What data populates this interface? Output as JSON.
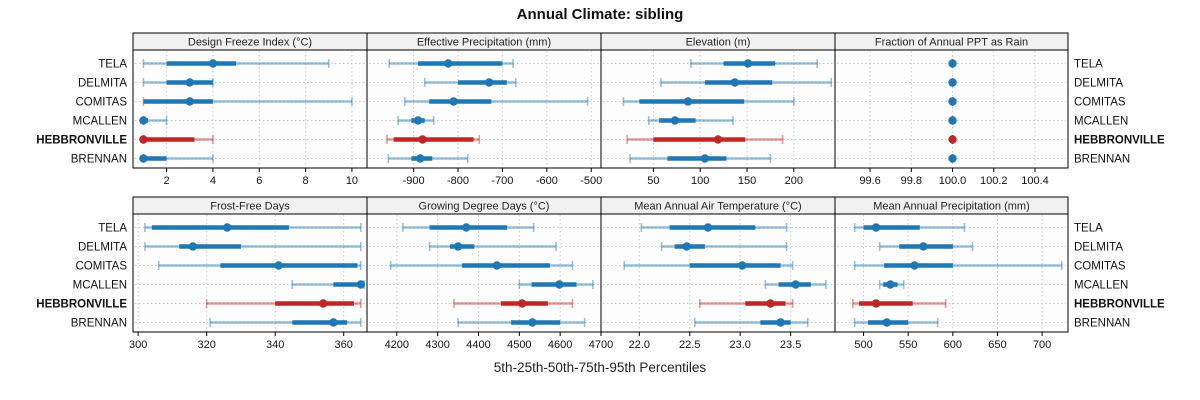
{
  "title": "Annual Climate: sibling",
  "caption": "5th-25th-50th-75th-95th Percentiles",
  "colors": {
    "blue": "#1f78b4",
    "blue_light": "rgba(31,120,180,0.45)",
    "red": "#bf2626",
    "red_light": "rgba(191,38,38,0.45)",
    "strip_bg": "#f0f0f0",
    "grid": "#c9c9c9",
    "border": "#000000",
    "panel_bg": "#fdfdfd"
  },
  "chart_data": {
    "type": "dotplot-percentiles",
    "title": "Annual Climate: sibling",
    "xlabel": "5th-25th-50th-75th-95th Percentiles",
    "grid_rows": 2,
    "grid_cols": 4,
    "legend_position": "none",
    "grid_on": true,
    "percentile_order": [
      "5th",
      "25th",
      "50th",
      "75th",
      "95th"
    ],
    "rows": [
      "TELA",
      "DELMITA",
      "COMITAS",
      "MCALLEN",
      "HEBBRONVILLE",
      "BRENNAN"
    ],
    "highlight_row": "HEBBRONVILLE",
    "panels": [
      {
        "id": "design-freeze-index",
        "label": "Design Freeze Index (°C)",
        "domain": [
          0.55,
          10.65
        ],
        "tick_values": [
          2,
          4,
          6,
          8,
          10
        ],
        "tick_labels": [
          "2",
          "4",
          "6",
          "8",
          "10"
        ],
        "values": [
          [
            1,
            2,
            4,
            5,
            9
          ],
          [
            1,
            2,
            3,
            4,
            4
          ],
          [
            1,
            1,
            3,
            4,
            10
          ],
          [
            1,
            1,
            1,
            1.2,
            2
          ],
          [
            1,
            1,
            1,
            3.2,
            4
          ],
          [
            1,
            1,
            1,
            2,
            4
          ]
        ]
      },
      {
        "id": "effective-precipitation",
        "label": "Effective Precipitation (mm)",
        "domain": [
          -1005,
          -478
        ],
        "tick_values": [
          -900,
          -800,
          -700,
          -600,
          -500
        ],
        "tick_labels": [
          "-900",
          "-800",
          "-700",
          "-600",
          "-500"
        ],
        "values": [
          [
            -955,
            -890,
            -822,
            -700,
            -676
          ],
          [
            -875,
            -800,
            -730,
            -690,
            -670
          ],
          [
            -920,
            -865,
            -810,
            -725,
            -508
          ],
          [
            -935,
            -905,
            -890,
            -875,
            -855
          ],
          [
            -960,
            -945,
            -880,
            -765,
            -752
          ],
          [
            -957,
            -905,
            -885,
            -858,
            -778
          ]
        ]
      },
      {
        "id": "elevation",
        "label": "Elevation (m)",
        "domain": [
          -6,
          244
        ],
        "tick_values": [
          50,
          100,
          150,
          200
        ],
        "tick_labels": [
          "50",
          "100",
          "150",
          "200"
        ],
        "values": [
          [
            90,
            125,
            151,
            180,
            225
          ],
          [
            58,
            105,
            137,
            177,
            240
          ],
          [
            18,
            35,
            87,
            147,
            200
          ],
          [
            45,
            56,
            73,
            95,
            135
          ],
          [
            22,
            50,
            119,
            148,
            188
          ],
          [
            25,
            65,
            105,
            128,
            175
          ]
        ]
      },
      {
        "id": "fraction-of-annual-ppt-as-rain",
        "label": "Fraction of Annual PPT as Rain",
        "domain": [
          99.43,
          100.56
        ],
        "tick_values": [
          99.6,
          99.8,
          100.0,
          100.2,
          100.4
        ],
        "tick_labels": [
          "99.6",
          "99.8",
          "100.0",
          "100.2",
          "100.4"
        ],
        "values": [
          [
            100,
            100,
            100,
            100,
            100
          ],
          [
            100,
            100,
            100,
            100,
            100
          ],
          [
            100,
            100,
            100,
            100,
            100
          ],
          [
            100,
            100,
            100,
            100,
            100
          ],
          [
            100,
            100,
            100,
            100,
            100
          ],
          [
            100,
            100,
            100,
            100,
            100
          ]
        ]
      },
      {
        "id": "frost-free-days",
        "label": "Frost-Free Days",
        "domain": [
          298.5,
          366.8
        ],
        "tick_values": [
          300,
          320,
          340,
          360
        ],
        "tick_labels": [
          "300",
          "320",
          "340",
          "360"
        ],
        "values": [
          [
            302,
            304,
            326,
            344,
            365
          ],
          [
            302,
            312,
            316,
            330,
            365
          ],
          [
            306,
            324,
            341,
            364,
            365
          ],
          [
            345,
            357,
            365,
            366,
            366
          ],
          [
            320,
            340,
            354,
            363,
            365
          ],
          [
            321,
            345,
            357,
            361,
            365
          ]
        ]
      },
      {
        "id": "growing-degree-days",
        "label": "Growing Degree Days (°C)",
        "domain": [
          4127,
          4700
        ],
        "tick_values": [
          4200,
          4300,
          4400,
          4500,
          4600,
          4700
        ],
        "tick_labels": [
          "4200",
          "4300",
          "4400",
          "4500",
          "4600",
          "4700"
        ],
        "values": [
          [
            4215,
            4280,
            4370,
            4470,
            4535
          ],
          [
            4280,
            4330,
            4350,
            4390,
            4590
          ],
          [
            4185,
            4360,
            4445,
            4575,
            4630
          ],
          [
            4500,
            4530,
            4598,
            4640,
            4680
          ],
          [
            4340,
            4455,
            4507,
            4570,
            4630
          ],
          [
            4350,
            4480,
            4532,
            4600,
            4660
          ]
        ]
      },
      {
        "id": "mean-annual-air-temperature",
        "label": "Mean Annual Air Temperature (°C)",
        "domain": [
          21.62,
          23.94
        ],
        "tick_values": [
          22.0,
          22.5,
          23.0,
          23.5
        ],
        "tick_labels": [
          "22.0",
          "22.5",
          "23.0",
          "23.5"
        ],
        "values": [
          [
            22.02,
            22.3,
            22.68,
            23.15,
            23.46
          ],
          [
            22.22,
            22.35,
            22.47,
            22.65,
            23.46
          ],
          [
            21.85,
            22.5,
            23.02,
            23.4,
            23.52
          ],
          [
            23.25,
            23.38,
            23.55,
            23.7,
            23.85
          ],
          [
            22.6,
            23.05,
            23.3,
            23.45,
            23.52
          ],
          [
            22.55,
            23.2,
            23.4,
            23.5,
            23.67
          ]
        ]
      },
      {
        "id": "mean-annual-precipitation",
        "label": "Mean Annual Precipitation (mm)",
        "domain": [
          468,
          729
        ],
        "tick_values": [
          500,
          550,
          600,
          650,
          700
        ],
        "tick_labels": [
          "500",
          "550",
          "600",
          "650",
          "700"
        ],
        "values": [
          [
            490,
            500,
            514,
            563,
            613
          ],
          [
            518,
            540,
            567,
            600,
            622
          ],
          [
            490,
            523,
            557,
            600,
            722
          ],
          [
            518,
            522,
            530,
            538,
            545
          ],
          [
            488,
            495,
            514,
            555,
            592
          ],
          [
            490,
            505,
            526,
            550,
            583
          ]
        ]
      }
    ]
  }
}
